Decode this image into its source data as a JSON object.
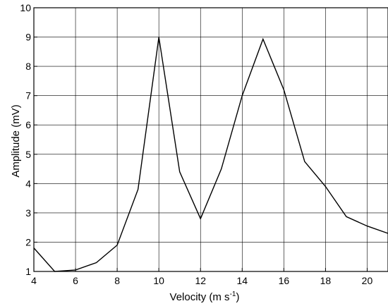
{
  "chart_data": {
    "type": "line",
    "xlabel": "Velocity (m s",
    "xlabel_sup": "-1",
    "xlabel_end": ")",
    "ylabel": "Amplitude (mV)",
    "xlim": [
      4,
      21
    ],
    "ylim": [
      1,
      10
    ],
    "grid": true,
    "x_ticks": [
      4,
      6,
      8,
      10,
      12,
      14,
      16,
      18,
      20
    ],
    "y_ticks": [
      1,
      2,
      3,
      4,
      5,
      6,
      7,
      8,
      9,
      10
    ],
    "x_tick_labels": [
      "4",
      "6",
      "8",
      "10",
      "12",
      "14",
      "16",
      "18",
      "20"
    ],
    "y_tick_labels": [
      "1",
      "2",
      "3",
      "4",
      "5",
      "6",
      "7",
      "8",
      "9",
      "10"
    ],
    "series": [
      {
        "x": [
          4,
          5,
          6,
          7,
          8,
          9,
          10,
          11,
          12,
          13,
          14,
          15,
          16,
          17,
          18,
          19,
          20,
          21
        ],
        "y": [
          1.8,
          1.0,
          1.05,
          1.3,
          1.9,
          3.8,
          9.0,
          4.4,
          2.8,
          4.5,
          7.0,
          8.93,
          7.2,
          4.75,
          3.9,
          2.87,
          2.55,
          2.3
        ]
      }
    ]
  }
}
